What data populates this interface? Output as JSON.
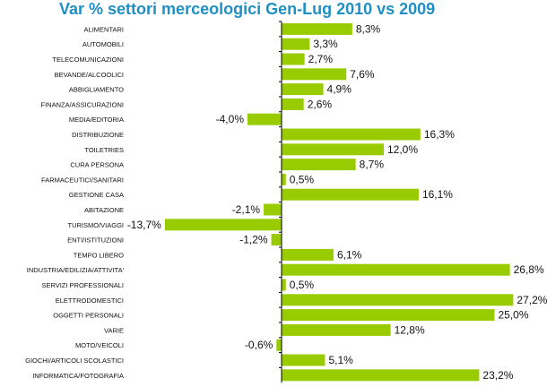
{
  "chart_data": {
    "type": "bar",
    "orientation": "horizontal",
    "title": "Var % settori merceologici Gen-Lug 2010 vs 2009",
    "bar_color": "#99cc00",
    "categories": [
      "ALIMENTARI",
      "AUTOMOBILI",
      "TELECOMUNICAZIONI",
      "BEVANDE/ALCOOLICI",
      "ABBIGLIAMENTO",
      "FINANZA/ASSICURAZIONI",
      "MEDIA/EDITORIA",
      "DISTRIBUZIONE",
      "TOILETRIES",
      "CURA PERSONA",
      "FARMACEUTICI/SANITARI",
      "GESTIONE CASA",
      "ABITAZIONE",
      "TURISMO/VIAGGI",
      "ENTI/ISTITUZIONI",
      "TEMPO LIBERO",
      "INDUSTRIA/EDILIZIA/ATTIVITA'",
      "SERVIZI PROFESSIONALI",
      "ELETTRODOMESTICI",
      "OGGETTI PERSONALI",
      "VARIE",
      "MOTO/VEICOLI",
      "GIOCHI/ARTICOLI SCOLASTICI",
      "INFORMATICA/FOTOGRAFIA"
    ],
    "values": [
      8.3,
      3.3,
      2.7,
      7.6,
      4.9,
      2.6,
      -4.0,
      16.3,
      12.0,
      8.7,
      0.5,
      16.1,
      -2.1,
      -13.7,
      -1.2,
      6.1,
      26.8,
      0.5,
      27.2,
      25.0,
      12.8,
      -0.6,
      5.1,
      23.2
    ],
    "labels": [
      "8,3%",
      "3,3%",
      "2,7%",
      "7,6%",
      "4,9%",
      "2,6%",
      "-4,0%",
      "16,3%",
      "12,0%",
      "8,7%",
      "0,5%",
      "16,1%",
      "-2,1%",
      "-13,7%",
      "-1,2%",
      "6,1%",
      "26,8%",
      "0,5%",
      "27,2%",
      "25,0%",
      "12,8%",
      "-0,6%",
      "5,1%",
      "23,2%"
    ],
    "grid": false
  }
}
